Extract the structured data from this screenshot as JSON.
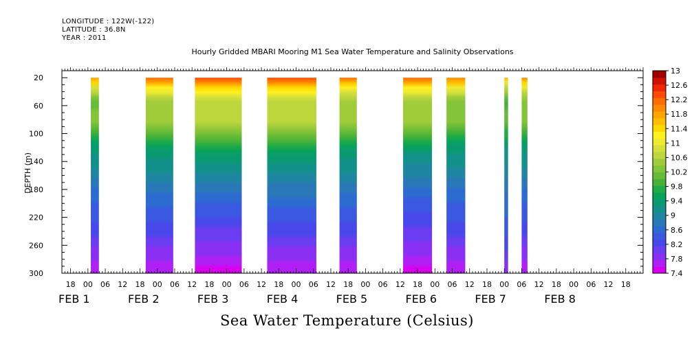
{
  "header": {
    "longitude": "LONGITUDE : 122W(-122)",
    "latitude": "LATITUDE : 36.8N",
    "year": "YEAR : 2011"
  },
  "chart_data": {
    "type": "heatmap",
    "title": "Hourly Gridded MBARI Mooring M1 Sea Water Temperature and Salinity Observations",
    "bottom_title": "Sea Water Temperature (Celsius)",
    "ylabel": "DEPTH (m)",
    "xlabel": "",
    "ylim": [
      10,
      300
    ],
    "y_inverted": true,
    "y_ticks": [
      20,
      60,
      100,
      140,
      180,
      220,
      260,
      300
    ],
    "x_unit": "hours from FEB 1 00:00",
    "x_range": [
      -9,
      1332
    ],
    "x_ticks": [
      {
        "x": -6,
        "label": "18"
      },
      {
        "x": 0,
        "label": "00"
      },
      {
        "x": 6,
        "label": "06"
      },
      {
        "x": 12,
        "label": "12"
      },
      {
        "x": 18,
        "label": "18"
      },
      {
        "x": 24,
        "label": "00"
      },
      {
        "x": 30,
        "label": "06"
      },
      {
        "x": 36,
        "label": "12"
      },
      {
        "x": 42,
        "label": "18"
      },
      {
        "x": 48,
        "label": "00"
      },
      {
        "x": 54,
        "label": "06"
      },
      {
        "x": 60,
        "label": "12"
      },
      {
        "x": 66,
        "label": "18"
      },
      {
        "x": 72,
        "label": "00"
      },
      {
        "x": 78,
        "label": "06"
      },
      {
        "x": 84,
        "label": "12"
      },
      {
        "x": 90,
        "label": "18"
      },
      {
        "x": 96,
        "label": "00"
      },
      {
        "x": 102,
        "label": "06"
      },
      {
        "x": 108,
        "label": "12"
      },
      {
        "x": 114,
        "label": "18"
      },
      {
        "x": 120,
        "label": "00"
      },
      {
        "x": 126,
        "label": "06"
      },
      {
        "x": 132,
        "label": "12"
      },
      {
        "x": 138,
        "label": "18"
      },
      {
        "x": 144,
        "label": "00"
      },
      {
        "x": 150,
        "label": "06"
      },
      {
        "x": 156,
        "label": "12"
      },
      {
        "x": 162,
        "label": "18"
      },
      {
        "x": 168,
        "label": "00"
      },
      {
        "x": 174,
        "label": "06"
      },
      {
        "x": 180,
        "label": "12"
      },
      {
        "x": 186,
        "label": "18"
      }
    ],
    "day_labels": [
      {
        "x": 0,
        "label": "FEB  1"
      },
      {
        "x": 24,
        "label": "FEB  2"
      },
      {
        "x": 48,
        "label": "FEB  3"
      },
      {
        "x": 72,
        "label": "FEB  4"
      },
      {
        "x": 96,
        "label": "FEB  5"
      },
      {
        "x": 120,
        "label": "FEB  6"
      },
      {
        "x": 144,
        "label": "FEB  7"
      },
      {
        "x": 168,
        "label": "FEB  8"
      }
    ],
    "segments": [
      {
        "start": 1.0,
        "end": 3.8,
        "surface_temp": 11.8,
        "mid_temp": 9.4,
        "bottom_temp": 7.6
      },
      {
        "start": 20.0,
        "end": 29.5,
        "surface_temp": 12.2,
        "mid_temp": 9.5,
        "bottom_temp": 7.6
      },
      {
        "start": 37.0,
        "end": 53.2,
        "surface_temp": 12.4,
        "mid_temp": 9.6,
        "bottom_temp": 7.5
      },
      {
        "start": 62.0,
        "end": 79.0,
        "surface_temp": 12.4,
        "mid_temp": 9.6,
        "bottom_temp": 7.6
      },
      {
        "start": 87.0,
        "end": 93.0,
        "surface_temp": 12.1,
        "mid_temp": 9.5,
        "bottom_temp": 7.6
      },
      {
        "start": 109.0,
        "end": 119.0,
        "surface_temp": 12.2,
        "mid_temp": 9.4,
        "bottom_temp": 7.5
      },
      {
        "start": 124.0,
        "end": 130.5,
        "surface_temp": 12.0,
        "mid_temp": 9.4,
        "bottom_temp": 7.6
      },
      {
        "start": 144.0,
        "end": 145.3,
        "surface_temp": 11.6,
        "mid_temp": 9.3,
        "bottom_temp": 7.8
      },
      {
        "start": 150.0,
        "end": 152.0,
        "surface_temp": 11.9,
        "mid_temp": 9.4,
        "bottom_temp": 7.6
      }
    ],
    "colorbar": {
      "min": 7.4,
      "max": 13,
      "step": 0.2,
      "labels": [
        "13",
        "12.6",
        "12.2",
        "11.8",
        "11.4",
        "11",
        "10.6",
        "10.2",
        "9.8",
        "9.4",
        "9",
        "8.6",
        "8.2",
        "7.8",
        "7.4"
      ],
      "colors": [
        "#d900f0",
        "#b020f5",
        "#8a30f5",
        "#6a3cf2",
        "#4848ea",
        "#3a58e0",
        "#2c6cd0",
        "#2a78b8",
        "#1f86a2",
        "#12918a",
        "#0b9a70",
        "#08a35a",
        "#20aa48",
        "#48b238",
        "#66bb38",
        "#84c438",
        "#a0cc3a",
        "#bcd63c",
        "#d6e03c",
        "#eeea30",
        "#fff020",
        "#ffd800",
        "#ffbe00",
        "#ffa400",
        "#ff8a00",
        "#ff6c00",
        "#ff4a00",
        "#f02800",
        "#d01000",
        "#a00000"
      ]
    }
  }
}
